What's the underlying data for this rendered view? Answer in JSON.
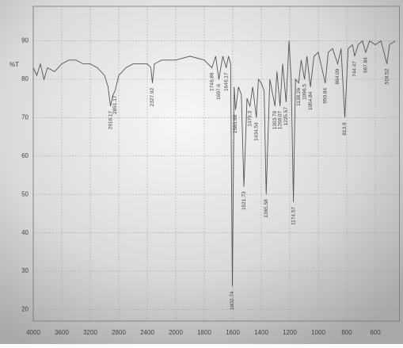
{
  "chart_data": {
    "type": "line",
    "y_label": "%T",
    "xlim": [
      4000,
      430
    ],
    "ylim": [
      17,
      99
    ],
    "xticks": [
      4000,
      3600,
      3200,
      2800,
      2400,
      2000,
      1800,
      1600,
      1400,
      1200,
      1000,
      800,
      600
    ],
    "yticks": [
      20,
      30,
      40,
      50,
      60,
      70,
      80,
      90
    ],
    "grid": true,
    "series": [
      {
        "color": "#555555",
        "x": [
          4000,
          3950,
          3900,
          3850,
          3800,
          3700,
          3600,
          3500,
          3400,
          3300,
          3200,
          3100,
          3000,
          2950,
          2916.17,
          2880,
          2851.17,
          2800,
          2700,
          2600,
          2500,
          2400,
          2350,
          2327.92,
          2300,
          2200,
          2100,
          2000,
          1900,
          1800,
          1746.89,
          1720,
          1697.6,
          1670,
          1646.17,
          1630,
          1615,
          1602.74,
          1590,
          1580.68,
          1560,
          1540,
          1521.73,
          1500,
          1479.3,
          1460,
          1434.54,
          1420,
          1400,
          1380,
          1365.58,
          1340,
          1303.79,
          1290,
          1268.07,
          1250,
          1225.57,
          1205,
          1190,
          1174.57,
          1160,
          1138.26,
          1120,
          1096.5,
          1080,
          1054.84,
          1030,
          1000,
          950.84,
          930,
          900,
          864.09,
          840,
          813.9,
          790,
          760,
          744.47,
          720,
          690,
          667.84,
          640,
          600,
          560,
          518.52,
          500,
          460
        ],
        "values": [
          83,
          81,
          84,
          80,
          83,
          82,
          84,
          85,
          85,
          84,
          84,
          83,
          81,
          78,
          73,
          76,
          77,
          81,
          83,
          84,
          84,
          84,
          83,
          79,
          84,
          85,
          85,
          85,
          86,
          85,
          83,
          86,
          80,
          86,
          83,
          86,
          84,
          26,
          78,
          72,
          78,
          76,
          52,
          75,
          73,
          78,
          70,
          80,
          79,
          77,
          50,
          80,
          73,
          82,
          73,
          84,
          74,
          90,
          80,
          48,
          80,
          79,
          85,
          80,
          86,
          78,
          86,
          87,
          79,
          87,
          88,
          84,
          88,
          70,
          88,
          89,
          86,
          89,
          90,
          87,
          90,
          89,
          90,
          84,
          89,
          90
        ]
      }
    ],
    "peak_labels": [
      2916.17,
      2851.17,
      2327.92,
      1746.89,
      1697.6,
      1646.17,
      1602.74,
      1580.68,
      1521.73,
      1479.3,
      1434.54,
      1365.58,
      1303.79,
      1268.07,
      1225.57,
      1174.57,
      1138.26,
      1096.5,
      1054.84,
      950.84,
      864.09,
      813.9,
      744.47,
      667.84,
      518.52
    ]
  }
}
